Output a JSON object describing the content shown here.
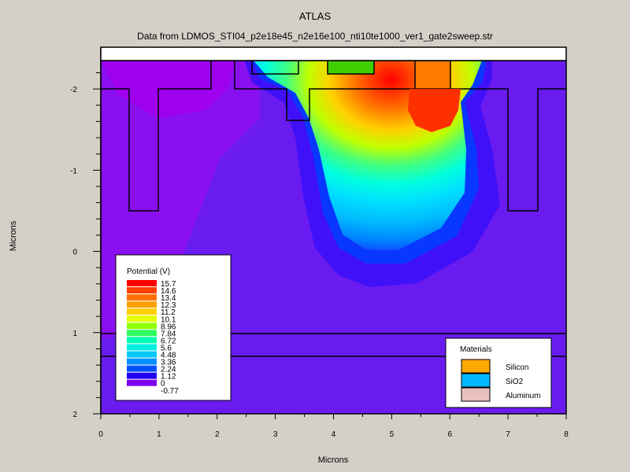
{
  "chart_data": {
    "type": "heatmap",
    "title": "ATLAS",
    "subtitle": "Data from LDMOS_STI04_p2e18e45_n2e16e100_nti10te1000_ver1_gate2sweep.str",
    "xlabel": "Microns",
    "ylabel": "Microns",
    "xlim": [
      0,
      8
    ],
    "ylim": [
      2,
      -2.35
    ],
    "x_ticks": [
      "0",
      "1",
      "2",
      "3",
      "4",
      "5",
      "6",
      "7",
      "8"
    ],
    "y_ticks": [
      {
        "value": -2,
        "label": "-2"
      },
      {
        "value": -1,
        "label": "-1"
      },
      {
        "value": 0,
        "label": "0"
      },
      {
        "value": 1,
        "label": "1"
      },
      {
        "value": 2,
        "label": "2"
      }
    ],
    "legend_potential": {
      "title": "Potential (V)",
      "levels": [
        "15.7",
        "14.6",
        "13.4",
        "12.3",
        "11.2",
        "10.1",
        "8.96",
        "7.84",
        "6.72",
        "5.6",
        "4.48",
        "3.36",
        "2.24",
        "1.12",
        "0",
        "-0.77"
      ],
      "colors": [
        "#ff0000",
        "#ff4000",
        "#ff7000",
        "#ffa000",
        "#ffd000",
        "#e6ff00",
        "#90ff00",
        "#30ff60",
        "#00ffb0",
        "#00f0e0",
        "#00c8ff",
        "#0090ff",
        "#0050ff",
        "#2000f0",
        "#8000f0",
        "#e000f0"
      ],
      "placement": "bottom-left"
    },
    "legend_materials": {
      "title": "Materials",
      "entries": [
        {
          "label": "Silicon",
          "color": "#ffa800"
        },
        {
          "label": "SiO2",
          "color": "#00b8ff"
        },
        {
          "label": "Aluminum",
          "color": "#e8c0c0"
        }
      ],
      "placement": "bottom-right"
    }
  }
}
